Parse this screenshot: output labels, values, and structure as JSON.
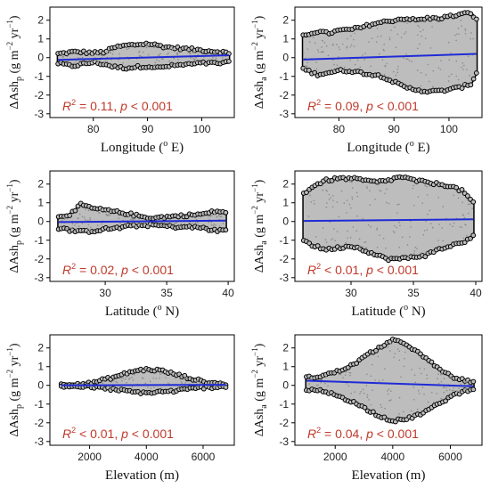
{
  "chart_data": [
    {
      "type": "scatter",
      "panel": "top-left",
      "xlabel_main": "Longitude (",
      "xlabel_sup": "o",
      "xlabel_tail": " E)",
      "ylabel_base": "ΔAsh",
      "ylabel_sub": "p",
      "ylabel_units": " (g m",
      "ylabel_exp1": "−2",
      "ylabel_mid": " yr",
      "ylabel_exp2": "−1",
      "ylabel_close": ")",
      "xlim": [
        72,
        106
      ],
      "ylim": [
        -3.2,
        2.7
      ],
      "xticks": [
        80,
        90,
        100
      ],
      "yticks": [
        -3,
        -2,
        -1,
        0,
        1,
        2
      ],
      "annotation": {
        "r2_label": "R",
        "r2_sup": "2",
        "r2_value": " = 0.11, ",
        "p_label": "p",
        "p_value": " < 0.001"
      },
      "fit_line": {
        "x": [
          73.5,
          105
        ],
        "y": [
          -0.12,
          0.13
        ]
      },
      "envelope": {
        "x": [
          73.5,
          76,
          78,
          80,
          82,
          84,
          86,
          88,
          90,
          92,
          94,
          96,
          98,
          100,
          102,
          104,
          105
        ],
        "upper": [
          0.2,
          0.3,
          0.3,
          0.25,
          0.3,
          0.55,
          0.65,
          0.7,
          0.75,
          0.65,
          0.55,
          0.5,
          0.45,
          0.4,
          0.35,
          0.3,
          0.2
        ],
        "lower": [
          -0.3,
          -0.45,
          -0.35,
          -0.25,
          -0.35,
          -0.5,
          -0.55,
          -0.5,
          -0.45,
          -0.55,
          -0.45,
          -0.4,
          -0.35,
          -0.3,
          -0.3,
          -0.3,
          -0.25
        ]
      }
    },
    {
      "type": "scatter",
      "panel": "top-right",
      "xlabel_main": "Longitude (",
      "xlabel_sup": "o",
      "xlabel_tail": " E)",
      "ylabel_base": "ΔAsh",
      "ylabel_sub": "a",
      "ylabel_units": " (g m",
      "ylabel_exp1": "−2",
      "ylabel_mid": " yr",
      "ylabel_exp2": "−1",
      "ylabel_close": ")",
      "xlim": [
        72,
        106
      ],
      "ylim": [
        -3.2,
        2.7
      ],
      "xticks": [
        80,
        90,
        100
      ],
      "yticks": [
        -3,
        -2,
        -1,
        0,
        1,
        2
      ],
      "annotation": {
        "r2_label": "R",
        "r2_sup": "2",
        "r2_value": " = 0.09, ",
        "p_label": "p",
        "p_value": " < 0.001"
      },
      "fit_line": {
        "x": [
          73.5,
          105
        ],
        "y": [
          -0.1,
          0.2
        ]
      },
      "envelope": {
        "x": [
          73.5,
          76,
          78,
          80,
          82,
          84,
          86,
          88,
          90,
          92,
          94,
          96,
          98,
          100,
          102,
          104,
          105
        ],
        "upper": [
          1.2,
          1.4,
          1.3,
          1.45,
          1.5,
          1.6,
          1.8,
          1.9,
          2.0,
          2.1,
          2.0,
          2.1,
          2.1,
          2.2,
          2.3,
          2.4,
          2.0
        ],
        "lower": [
          -0.6,
          -0.9,
          -0.8,
          -0.7,
          -0.7,
          -0.8,
          -0.9,
          -1.0,
          -1.3,
          -1.6,
          -1.7,
          -1.8,
          -1.8,
          -1.7,
          -1.6,
          -1.4,
          -0.8
        ]
      }
    },
    {
      "type": "scatter",
      "panel": "middle-left",
      "xlabel_main": "Latitude (",
      "xlabel_sup": "o",
      "xlabel_tail": " N)",
      "ylabel_base": "ΔAsh",
      "ylabel_sub": "p",
      "ylabel_units": " (g m",
      "ylabel_exp1": "−2",
      "ylabel_mid": " yr",
      "ylabel_exp2": "−1",
      "ylabel_close": ")",
      "xlim": [
        25.5,
        40.5
      ],
      "ylim": [
        -3.2,
        2.7
      ],
      "xticks": [
        30,
        35,
        40
      ],
      "yticks": [
        -3,
        -2,
        -1,
        0,
        1,
        2
      ],
      "annotation": {
        "r2_label": "R",
        "r2_sup": "2",
        "r2_value": " = 0.02, ",
        "p_label": "p",
        "p_value": " < 0.001"
      },
      "fit_line": {
        "x": [
          26.2,
          39.8
        ],
        "y": [
          -0.03,
          0.05
        ]
      },
      "envelope": {
        "x": [
          26.2,
          27,
          27.5,
          28,
          29,
          30,
          31,
          32,
          33,
          34,
          35,
          36,
          37,
          38,
          39,
          39.8
        ],
        "upper": [
          0.3,
          0.35,
          0.55,
          0.9,
          0.7,
          0.6,
          0.5,
          0.4,
          0.25,
          0.2,
          0.25,
          0.3,
          0.35,
          0.4,
          0.55,
          0.5
        ],
        "lower": [
          -0.35,
          -0.45,
          -0.5,
          -0.55,
          -0.5,
          -0.4,
          -0.35,
          -0.25,
          -0.2,
          -0.2,
          -0.25,
          -0.3,
          -0.3,
          -0.35,
          -0.5,
          -0.45
        ]
      }
    },
    {
      "type": "scatter",
      "panel": "middle-right",
      "xlabel_main": "Latitude (",
      "xlabel_sup": "o",
      "xlabel_tail": " N)",
      "ylabel_base": "ΔAsh",
      "ylabel_sub": "a",
      "ylabel_units": " (g m",
      "ylabel_exp1": "−2",
      "ylabel_mid": " yr",
      "ylabel_exp2": "−1",
      "ylabel_close": ")",
      "xlim": [
        25.5,
        40.5
      ],
      "ylim": [
        -3.2,
        2.7
      ],
      "xticks": [
        30,
        35,
        40
      ],
      "yticks": [
        -3,
        -2,
        -1,
        0,
        1,
        2
      ],
      "annotation": {
        "r2_label": "R",
        "r2_sup": "2",
        "r2_value": " < 0.01, ",
        "p_label": "p",
        "p_value": " < 0.001"
      },
      "fit_line": {
        "x": [
          26.2,
          39.8
        ],
        "y": [
          0.03,
          0.12
        ]
      },
      "envelope": {
        "x": [
          26.2,
          27,
          28,
          29,
          30,
          31,
          32,
          33,
          34,
          35,
          36,
          37,
          38,
          39,
          39.8
        ],
        "upper": [
          1.5,
          1.9,
          2.2,
          2.3,
          2.3,
          2.2,
          2.1,
          2.2,
          2.4,
          2.2,
          2.1,
          2.0,
          1.9,
          1.6,
          1.0
        ],
        "lower": [
          -1.0,
          -1.3,
          -1.5,
          -1.4,
          -1.3,
          -1.5,
          -1.8,
          -2.0,
          -2.0,
          -1.9,
          -1.8,
          -1.5,
          -1.3,
          -1.1,
          -0.8
        ]
      }
    },
    {
      "type": "scatter",
      "panel": "bottom-left",
      "xlabel_main": "Elevation (m)",
      "xlabel_sup": "",
      "xlabel_tail": "",
      "ylabel_base": "ΔAsh",
      "ylabel_sub": "p",
      "ylabel_units": " (g m",
      "ylabel_exp1": "−2",
      "ylabel_mid": " yr",
      "ylabel_exp2": "−1",
      "ylabel_close": ")",
      "xlim": [
        600,
        7100
      ],
      "ylim": [
        -3.2,
        2.7
      ],
      "xticks": [
        2000,
        4000,
        6000
      ],
      "yticks": [
        -3,
        -2,
        -1,
        0,
        1,
        2
      ],
      "annotation": {
        "r2_label": "R",
        "r2_sup": "2",
        "r2_value": " < 0.01, ",
        "p_label": "p",
        "p_value": " < 0.001"
      },
      "fit_line": {
        "x": [
          1000,
          6800
        ],
        "y": [
          0.0,
          0.03
        ]
      },
      "envelope": {
        "x": [
          1000,
          1500,
          2000,
          2500,
          3000,
          3500,
          4000,
          4500,
          5000,
          5500,
          6000,
          6500,
          6800
        ],
        "upper": [
          0.07,
          0.08,
          0.1,
          0.3,
          0.5,
          0.75,
          0.85,
          0.8,
          0.6,
          0.4,
          0.2,
          0.1,
          0.08
        ],
        "lower": [
          -0.05,
          -0.06,
          -0.08,
          -0.15,
          -0.25,
          -0.35,
          -0.4,
          -0.35,
          -0.3,
          -0.2,
          -0.12,
          -0.08,
          -0.05
        ]
      }
    },
    {
      "type": "scatter",
      "panel": "bottom-right",
      "xlabel_main": "Elevation (m)",
      "xlabel_sup": "",
      "xlabel_tail": "",
      "ylabel_base": "ΔAsh",
      "ylabel_sub": "a",
      "ylabel_units": " (g m",
      "ylabel_exp1": "−2",
      "ylabel_mid": " yr",
      "ylabel_exp2": "−1",
      "ylabel_close": ")",
      "xlim": [
        600,
        7100
      ],
      "ylim": [
        -3.2,
        2.7
      ],
      "xticks": [
        2000,
        4000,
        6000
      ],
      "yticks": [
        -3,
        -2,
        -1,
        0,
        1,
        2
      ],
      "annotation": {
        "r2_label": "R",
        "r2_sup": "2",
        "r2_value": " = 0.04, ",
        "p_label": "p",
        "p_value": " < 0.001"
      },
      "fit_line": {
        "x": [
          1000,
          6800
        ],
        "y": [
          0.25,
          -0.05
        ]
      },
      "envelope": {
        "x": [
          1000,
          1500,
          2000,
          2500,
          3000,
          3500,
          4000,
          4500,
          5000,
          5500,
          6000,
          6500,
          6800
        ],
        "upper": [
          0.4,
          0.5,
          0.7,
          1.0,
          1.5,
          2.0,
          2.4,
          2.2,
          1.6,
          1.0,
          0.5,
          0.25,
          0.15
        ],
        "lower": [
          -0.25,
          -0.3,
          -0.5,
          -0.8,
          -1.2,
          -1.6,
          -1.9,
          -1.8,
          -1.5,
          -1.1,
          -0.6,
          -0.3,
          -0.15
        ]
      }
    }
  ],
  "colors": {
    "points_fill": "#bdbdbd",
    "points_edge": "#000000",
    "fit_line": "#1f2bd6",
    "annotation": "#c0392b"
  }
}
